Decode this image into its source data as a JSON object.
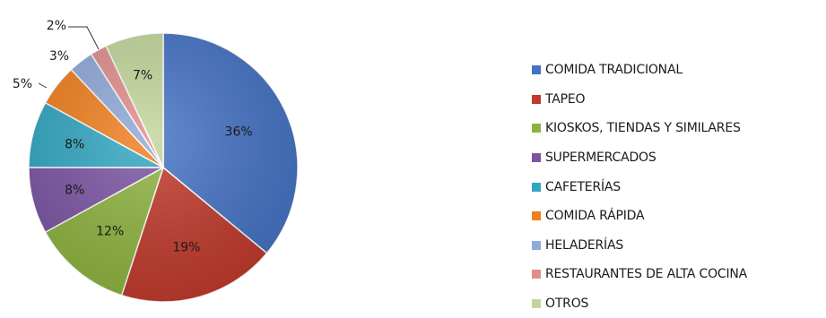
{
  "chart_data": {
    "type": "pie",
    "categories": [
      "COMIDA TRADICIONAL",
      "TAPEO",
      "KIOSKOS, TIENDAS  Y SIMILARES",
      "SUPERMERCADOS",
      "CAFETERÍAS",
      "COMIDA RÁPIDA",
      "HELADERÍAS",
      "RESTAURANTES  DE ALTA COCINA",
      "OTROS"
    ],
    "values": [
      36,
      19,
      12,
      8,
      8,
      5,
      3,
      2,
      7
    ],
    "labels": [
      "36%",
      "19%",
      "12%",
      "8%",
      "8%",
      "5%",
      "3%",
      "2%",
      "7%"
    ],
    "colors": [
      "#4472C4",
      "#C0392B",
      "#8DB33F",
      "#7B54A3",
      "#31A6C1",
      "#F07F1E",
      "#8FA9D8",
      "#E08E8C",
      "#C2D69B"
    ],
    "legend_position": "right",
    "title": ""
  }
}
